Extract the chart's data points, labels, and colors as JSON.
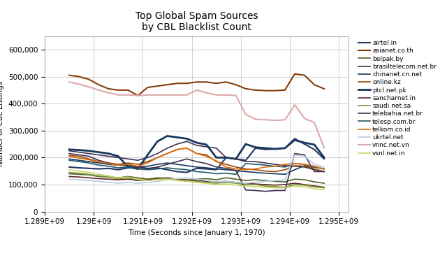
{
  "title": "Top Global Spam Sources\nby CBL Blacklist Count",
  "xlabel": "Time (Seconds since January 1, 1970)",
  "ylabel": "Number of CBL Listings",
  "xlim": [
    1289000000.0,
    1295200000.0
  ],
  "ylim": [
    0,
    650000
  ],
  "yticks": [
    0,
    100000,
    200000,
    300000,
    400000,
    500000,
    600000
  ],
  "xticks": [
    1289000000.0,
    1290000000.0,
    1291000000.0,
    1292000000.0,
    1293000000.0,
    1294000000.0,
    1295000000.0
  ],
  "xtick_labels": [
    "1.289E+09",
    "1.29E+09",
    "1.291E+09",
    "1.292E+09",
    "1.293E+09",
    "1.294E+09",
    "1.295E+09"
  ],
  "series": {
    "airtel.in": {
      "color": "#1F3864",
      "lw": 1.5,
      "data_x": [
        1289500000.0,
        1289700000.0,
        1289900000.0,
        1290100000.0,
        1290300000.0,
        1290500000.0,
        1290700000.0,
        1290900000.0,
        1291100000.0,
        1291300000.0,
        1291500000.0,
        1291700000.0,
        1291900000.0,
        1292100000.0,
        1292300000.0,
        1292500000.0,
        1292700000.0,
        1292900000.0,
        1293100000.0,
        1293300000.0,
        1293500000.0,
        1293700000.0,
        1293900000.0,
        1294100000.0,
        1294300000.0,
        1294500000.0,
        1294700000.0
      ],
      "data_y": [
        165000,
        162000,
        160000,
        158000,
        160000,
        155000,
        162000,
        165000,
        160000,
        162000,
        155000,
        148000,
        145000,
        160000,
        158000,
        155000,
        200000,
        195000,
        190000,
        235000,
        230000,
        232000,
        235000,
        270000,
        250000,
        230000,
        195000
      ]
    },
    "asianet.co.th": {
      "color": "#843C0C",
      "lw": 1.5,
      "data_x": [
        1289500000.0,
        1289700000.0,
        1289900000.0,
        1290100000.0,
        1290300000.0,
        1290500000.0,
        1290700000.0,
        1290900000.0,
        1291100000.0,
        1291300000.0,
        1291500000.0,
        1291700000.0,
        1291900000.0,
        1292100000.0,
        1292300000.0,
        1292500000.0,
        1292700000.0,
        1292900000.0,
        1293100000.0,
        1293300000.0,
        1293500000.0,
        1293700000.0,
        1293900000.0,
        1294100000.0,
        1294300000.0,
        1294500000.0,
        1294700000.0
      ],
      "data_y": [
        505000,
        500000,
        490000,
        470000,
        455000,
        450000,
        450000,
        430000,
        460000,
        465000,
        470000,
        475000,
        475000,
        480000,
        480000,
        475000,
        480000,
        470000,
        455000,
        450000,
        448000,
        448000,
        450000,
        510000,
        505000,
        470000,
        455000
      ]
    },
    "belpak.by": {
      "color": "#4F6228",
      "lw": 1.2,
      "data_x": [
        1289500000.0,
        1289700000.0,
        1289900000.0,
        1290100000.0,
        1290300000.0,
        1290500000.0,
        1290700000.0,
        1290900000.0,
        1291100000.0,
        1291300000.0,
        1291500000.0,
        1291700000.0,
        1291900000.0,
        1292100000.0,
        1292300000.0,
        1292500000.0,
        1292700000.0,
        1292900000.0,
        1293100000.0,
        1293300000.0,
        1293500000.0,
        1293700000.0,
        1293900000.0,
        1294100000.0,
        1294300000.0,
        1294500000.0,
        1294700000.0
      ],
      "data_y": [
        140000,
        138000,
        136000,
        130000,
        128000,
        125000,
        130000,
        125000,
        120000,
        125000,
        122000,
        118000,
        115000,
        120000,
        122000,
        118000,
        125000,
        120000,
        115000,
        118000,
        115000,
        112000,
        110000,
        120000,
        118000,
        110000,
        105000
      ]
    },
    "brasiltelecom.net.br": {
      "color": "#3F3151",
      "lw": 1.2,
      "data_x": [
        1289500000.0,
        1289700000.0,
        1289900000.0,
        1290100000.0,
        1290300000.0,
        1290500000.0,
        1290700000.0,
        1290900000.0,
        1291100000.0,
        1291300000.0,
        1291500000.0,
        1291700000.0,
        1291900000.0,
        1292100000.0,
        1292300000.0,
        1292500000.0,
        1292700000.0,
        1292900000.0,
        1293100000.0,
        1293300000.0,
        1293500000.0,
        1293700000.0,
        1293900000.0,
        1294100000.0,
        1294300000.0,
        1294500000.0,
        1294700000.0
      ],
      "data_y": [
        225000,
        220000,
        215000,
        210000,
        205000,
        200000,
        195000,
        190000,
        200000,
        215000,
        235000,
        250000,
        260000,
        245000,
        240000,
        235000,
        200000,
        195000,
        185000,
        185000,
        180000,
        175000,
        170000,
        168000,
        165000,
        155000,
        148000
      ]
    },
    "chinanet.cn.net": {
      "color": "#17375E",
      "lw": 1.2,
      "data_x": [
        1289500000.0,
        1289700000.0,
        1289900000.0,
        1290100000.0,
        1290300000.0,
        1290500000.0,
        1290700000.0,
        1290900000.0,
        1291100000.0,
        1291300000.0,
        1291500000.0,
        1291700000.0,
        1291900000.0,
        1292100000.0,
        1292300000.0,
        1292500000.0,
        1292700000.0,
        1292900000.0,
        1293100000.0,
        1293300000.0,
        1293500000.0,
        1293700000.0,
        1293900000.0,
        1294100000.0,
        1294300000.0,
        1294500000.0,
        1294700000.0
      ],
      "data_y": [
        195000,
        190000,
        185000,
        180000,
        175000,
        172000,
        170000,
        165000,
        168000,
        175000,
        180000,
        175000,
        170000,
        165000,
        162000,
        158000,
        155000,
        152000,
        148000,
        145000,
        142000,
        140000,
        138000,
        155000,
        170000,
        165000,
        158000
      ]
    },
    "online.kz": {
      "color": "#974706",
      "lw": 1.2,
      "data_x": [
        1289500000.0,
        1289700000.0,
        1289900000.0,
        1290100000.0,
        1290300000.0,
        1290500000.0,
        1290700000.0,
        1290900000.0,
        1291100000.0,
        1291300000.0,
        1291500000.0,
        1291700000.0,
        1291900000.0,
        1292100000.0,
        1292300000.0,
        1292500000.0,
        1292700000.0,
        1292900000.0,
        1293100000.0,
        1293300000.0,
        1293500000.0,
        1293700000.0,
        1293900000.0,
        1294100000.0,
        1294300000.0,
        1294500000.0,
        1294700000.0
      ],
      "data_y": [
        208000,
        205000,
        195000,
        185000,
        180000,
        175000,
        180000,
        175000,
        185000,
        200000,
        215000,
        230000,
        235000,
        215000,
        210000,
        185000,
        175000,
        165000,
        158000,
        155000,
        150000,
        148000,
        155000,
        170000,
        168000,
        158000,
        148000
      ]
    },
    "ptcl.net.pk": {
      "color": "#17375E",
      "lw": 2.0,
      "data_x": [
        1289500000.0,
        1289700000.0,
        1289900000.0,
        1290100000.0,
        1290300000.0,
        1290500000.0,
        1290700000.0,
        1290900000.0,
        1291100000.0,
        1291300000.0,
        1291500000.0,
        1291700000.0,
        1291900000.0,
        1292100000.0,
        1292300000.0,
        1292500000.0,
        1292700000.0,
        1292900000.0,
        1293100000.0,
        1293300000.0,
        1293500000.0,
        1293700000.0,
        1293900000.0,
        1294100000.0,
        1294300000.0,
        1294500000.0,
        1294700000.0
      ],
      "data_y": [
        230000,
        228000,
        225000,
        220000,
        215000,
        205000,
        165000,
        158000,
        210000,
        260000,
        280000,
        275000,
        270000,
        255000,
        248000,
        200000,
        200000,
        195000,
        250000,
        238000,
        235000,
        232000,
        235000,
        265000,
        255000,
        248000,
        200000
      ]
    },
    "sancharnet.in": {
      "color": "#632523",
      "lw": 1.2,
      "data_x": [
        1289500000.0,
        1289700000.0,
        1289900000.0,
        1290100000.0,
        1290300000.0,
        1290500000.0,
        1290700000.0,
        1290900000.0,
        1291100000.0,
        1291300000.0,
        1291500000.0,
        1291700000.0,
        1291900000.0,
        1292100000.0,
        1292300000.0,
        1292500000.0,
        1292700000.0,
        1292900000.0,
        1293100000.0,
        1293300000.0,
        1293500000.0,
        1293700000.0,
        1293900000.0,
        1294100000.0,
        1294300000.0,
        1294500000.0,
        1294700000.0
      ],
      "data_y": [
        130000,
        128000,
        125000,
        122000,
        120000,
        118000,
        120000,
        115000,
        118000,
        122000,
        125000,
        120000,
        118000,
        115000,
        112000,
        110000,
        112000,
        108000,
        105000,
        102000,
        100000,
        98000,
        100000,
        105000,
        100000,
        95000,
        90000
      ]
    },
    "saudi.net.sa": {
      "color": "#76923C",
      "lw": 1.2,
      "data_x": [
        1289500000.0,
        1289700000.0,
        1289900000.0,
        1290100000.0,
        1290300000.0,
        1290500000.0,
        1290700000.0,
        1290900000.0,
        1291100000.0,
        1291300000.0,
        1291500000.0,
        1291700000.0,
        1291900000.0,
        1292100000.0,
        1292300000.0,
        1292500000.0,
        1292700000.0,
        1292900000.0,
        1293100000.0,
        1293300000.0,
        1293500000.0,
        1293700000.0,
        1293900000.0,
        1294100000.0,
        1294300000.0,
        1294500000.0,
        1294700000.0
      ],
      "data_y": [
        145000,
        142000,
        138000,
        132000,
        128000,
        122000,
        125000,
        118000,
        115000,
        120000,
        122000,
        118000,
        115000,
        112000,
        108000,
        105000,
        108000,
        105000,
        100000,
        100000,
        95000,
        92000,
        90000,
        100000,
        98000,
        92000,
        88000
      ]
    },
    "telebahia.net.br": {
      "color": "#403151",
      "lw": 1.2,
      "data_x": [
        1289500000.0,
        1289700000.0,
        1289900000.0,
        1290100000.0,
        1290300000.0,
        1290500000.0,
        1290700000.0,
        1290900000.0,
        1291100000.0,
        1291300000.0,
        1291500000.0,
        1291700000.0,
        1291900000.0,
        1292100000.0,
        1292300000.0,
        1292500000.0,
        1292700000.0,
        1292900000.0,
        1293100000.0,
        1293300000.0,
        1293500000.0,
        1293700000.0,
        1293900000.0,
        1294100000.0,
        1294300000.0,
        1294500000.0,
        1294700000.0
      ],
      "data_y": [
        215000,
        210000,
        205000,
        190000,
        180000,
        172000,
        175000,
        165000,
        158000,
        165000,
        175000,
        185000,
        195000,
        185000,
        178000,
        165000,
        160000,
        152000,
        80000,
        78000,
        75000,
        78000,
        78000,
        215000,
        210000,
        148000,
        148000
      ]
    },
    "telesp.com.br": {
      "color": "#215868",
      "lw": 1.2,
      "data_x": [
        1289500000.0,
        1289700000.0,
        1289900000.0,
        1290100000.0,
        1290300000.0,
        1290500000.0,
        1290700000.0,
        1290900000.0,
        1291100000.0,
        1291300000.0,
        1291500000.0,
        1291700000.0,
        1291900000.0,
        1292100000.0,
        1292300000.0,
        1292500000.0,
        1292700000.0,
        1292900000.0,
        1293100000.0,
        1293300000.0,
        1293500000.0,
        1293700000.0,
        1293900000.0,
        1294100000.0,
        1294300000.0,
        1294500000.0,
        1294700000.0
      ],
      "data_y": [
        190000,
        185000,
        180000,
        172000,
        168000,
        162000,
        165000,
        158000,
        155000,
        158000,
        162000,
        158000,
        155000,
        148000,
        145000,
        140000,
        142000,
        138000,
        178000,
        175000,
        172000,
        168000,
        165000,
        178000,
        175000,
        165000,
        158000
      ]
    },
    "telkom.co.id": {
      "color": "#E26B0A",
      "lw": 1.2,
      "data_x": [
        1289500000.0,
        1289700000.0,
        1289900000.0,
        1290100000.0,
        1290300000.0,
        1290500000.0,
        1290700000.0,
        1290900000.0,
        1291100000.0,
        1291300000.0,
        1291500000.0,
        1291700000.0,
        1291900000.0,
        1292100000.0,
        1292300000.0,
        1292500000.0,
        1292700000.0,
        1292900000.0,
        1293100000.0,
        1293300000.0,
        1293500000.0,
        1293700000.0,
        1293900000.0,
        1294100000.0,
        1294300000.0,
        1294500000.0,
        1294700000.0
      ],
      "data_y": [
        205000,
        198000,
        192000,
        185000,
        178000,
        172000,
        175000,
        168000,
        180000,
        200000,
        215000,
        230000,
        235000,
        215000,
        205000,
        188000,
        165000,
        158000,
        155000,
        158000,
        165000,
        168000,
        175000,
        178000,
        175000,
        168000,
        158000
      ]
    },
    "ukrtel.net": {
      "color": "#B8CCE4",
      "lw": 1.2,
      "data_x": [
        1289500000.0,
        1289700000.0,
        1289900000.0,
        1290100000.0,
        1290300000.0,
        1290500000.0,
        1290700000.0,
        1290900000.0,
        1291100000.0,
        1291300000.0,
        1291500000.0,
        1291700000.0,
        1291900000.0,
        1292100000.0,
        1292300000.0,
        1292500000.0,
        1292700000.0,
        1292900000.0,
        1293100000.0,
        1293300000.0,
        1293500000.0,
        1293700000.0,
        1293900000.0,
        1294100000.0,
        1294300000.0,
        1294500000.0,
        1294700000.0
      ],
      "data_y": [
        120000,
        118000,
        115000,
        112000,
        108000,
        105000,
        108000,
        105000,
        108000,
        112000,
        118000,
        122000,
        125000,
        120000,
        115000,
        110000,
        112000,
        108000,
        105000,
        108000,
        112000,
        115000,
        118000,
        210000,
        205000,
        175000,
        165000
      ]
    },
    "vnnc.net.vn": {
      "color": "#DCA9A9",
      "lw": 1.5,
      "data_x": [
        1289500000.0,
        1289700000.0,
        1289900000.0,
        1290100000.0,
        1290300000.0,
        1290500000.0,
        1290700000.0,
        1290900000.0,
        1291100000.0,
        1291300000.0,
        1291500000.0,
        1291700000.0,
        1291900000.0,
        1292100000.0,
        1292300000.0,
        1292500000.0,
        1292700000.0,
        1292900000.0,
        1293100000.0,
        1293300000.0,
        1293500000.0,
        1293700000.0,
        1293900000.0,
        1294100000.0,
        1294300000.0,
        1294500000.0,
        1294700000.0
      ],
      "data_y": [
        480000,
        472000,
        462000,
        450000,
        440000,
        432000,
        432000,
        430000,
        432000,
        432000,
        432000,
        432000,
        432000,
        450000,
        440000,
        432000,
        432000,
        430000,
        360000,
        342000,
        340000,
        338000,
        340000,
        395000,
        345000,
        330000,
        235000
      ]
    },
    "vsnl.net.in": {
      "color": "#CDD462",
      "lw": 1.2,
      "data_x": [
        1289500000.0,
        1289700000.0,
        1289900000.0,
        1290100000.0,
        1290300000.0,
        1290500000.0,
        1290700000.0,
        1290900000.0,
        1291100000.0,
        1291300000.0,
        1291500000.0,
        1291700000.0,
        1291900000.0,
        1292100000.0,
        1292300000.0,
        1292500000.0,
        1292700000.0,
        1292900000.0,
        1293100000.0,
        1293300000.0,
        1293500000.0,
        1293700000.0,
        1293900000.0,
        1294100000.0,
        1294300000.0,
        1294500000.0,
        1294700000.0
      ],
      "data_y": [
        155000,
        150000,
        145000,
        138000,
        132000,
        125000,
        128000,
        120000,
        115000,
        118000,
        120000,
        115000,
        112000,
        108000,
        105000,
        100000,
        102000,
        98000,
        95000,
        92000,
        90000,
        88000,
        88000,
        95000,
        92000,
        85000,
        80000
      ]
    }
  },
  "background_color": "#FFFFFF",
  "grid_color": "#AAAAAA",
  "legend_fontsize": 6.5,
  "title_fontsize": 10,
  "axes_fontsize": 7.5
}
